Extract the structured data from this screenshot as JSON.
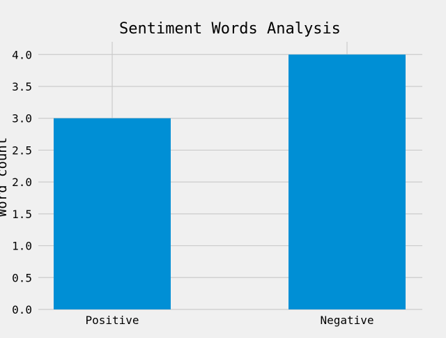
{
  "chart_data": {
    "type": "bar",
    "title": "Sentiment Words Analysis",
    "xlabel": "",
    "ylabel": "Word count",
    "categories": [
      "Positive",
      "Negative"
    ],
    "values": [
      3,
      4
    ],
    "ylim": [
      0,
      4.2
    ],
    "yticks": [
      "0.0",
      "0.5",
      "1.0",
      "1.5",
      "2.0",
      "2.5",
      "3.0",
      "3.5",
      "4.0"
    ],
    "grid": true,
    "legend": "none",
    "colors": {
      "bar": "#008fd5",
      "grid": "#cbcbcb",
      "background": "#f0f0f0"
    }
  }
}
